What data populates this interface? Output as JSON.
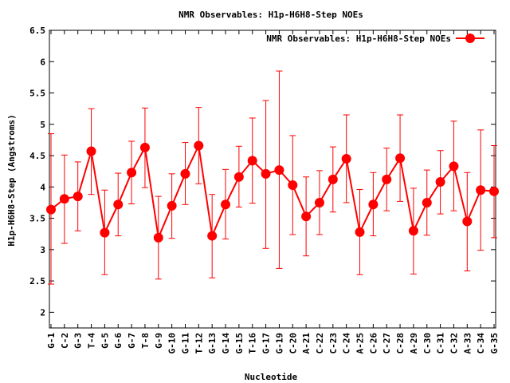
{
  "chart_data": {
    "type": "line",
    "title": "NMR Observables: H1p-H6H8-Step NOEs",
    "xlabel": "Nucleotide",
    "ylabel": "H1p-H6H8-Step (Angstroms)",
    "ylim": [
      1.75,
      6.5
    ],
    "yticks": [
      "2",
      "2.5",
      "3",
      "3.5",
      "4",
      "4.5",
      "5",
      "5.5",
      "6",
      "6.5"
    ],
    "grid": false,
    "legend_position": "top-right",
    "series_color": "#ff0000",
    "series": [
      {
        "name": "NMR Observables: H1p-H6H8-Step NOEs",
        "points": [
          {
            "x": "G-1",
            "y": 3.64,
            "ylow": 2.45,
            "yhigh": 4.85
          },
          {
            "x": "C-2",
            "y": 3.81,
            "ylow": 3.1,
            "yhigh": 4.51
          },
          {
            "x": "G-3",
            "y": 3.85,
            "ylow": 3.3,
            "yhigh": 4.4
          },
          {
            "x": "T-4",
            "y": 4.57,
            "ylow": 3.88,
            "yhigh": 5.25
          },
          {
            "x": "G-5",
            "y": 3.27,
            "ylow": 2.6,
            "yhigh": 3.95
          },
          {
            "x": "G-6",
            "y": 3.72,
            "ylow": 3.22,
            "yhigh": 4.22
          },
          {
            "x": "G-7",
            "y": 4.23,
            "ylow": 3.73,
            "yhigh": 4.73
          },
          {
            "x": "T-8",
            "y": 4.63,
            "ylow": 3.99,
            "yhigh": 5.26
          },
          {
            "x": "G-9",
            "y": 3.19,
            "ylow": 2.53,
            "yhigh": 3.85
          },
          {
            "x": "G-10",
            "y": 3.7,
            "ylow": 3.18,
            "yhigh": 4.21
          },
          {
            "x": "G-11",
            "y": 4.21,
            "ylow": 3.72,
            "yhigh": 4.71
          },
          {
            "x": "T-12",
            "y": 4.66,
            "ylow": 4.05,
            "yhigh": 5.27
          },
          {
            "x": "G-13",
            "y": 3.22,
            "ylow": 2.55,
            "yhigh": 3.88
          },
          {
            "x": "G-14",
            "y": 3.72,
            "ylow": 3.17,
            "yhigh": 4.28
          },
          {
            "x": "G-15",
            "y": 4.16,
            "ylow": 3.68,
            "yhigh": 4.65
          },
          {
            "x": "T-16",
            "y": 4.42,
            "ylow": 3.74,
            "yhigh": 5.1
          },
          {
            "x": "G-17",
            "y": 4.21,
            "ylow": 3.02,
            "yhigh": 5.38
          },
          {
            "x": "G-19",
            "y": 4.27,
            "ylow": 2.7,
            "yhigh": 5.85
          },
          {
            "x": "C-20",
            "y": 4.03,
            "ylow": 3.24,
            "yhigh": 4.82
          },
          {
            "x": "A-21",
            "y": 3.53,
            "ylow": 2.9,
            "yhigh": 4.16
          },
          {
            "x": "C-22",
            "y": 3.75,
            "ylow": 3.24,
            "yhigh": 4.26
          },
          {
            "x": "C-23",
            "y": 4.12,
            "ylow": 3.6,
            "yhigh": 4.64
          },
          {
            "x": "C-24",
            "y": 4.45,
            "ylow": 3.75,
            "yhigh": 5.15
          },
          {
            "x": "A-25",
            "y": 3.28,
            "ylow": 2.6,
            "yhigh": 3.96
          },
          {
            "x": "C-26",
            "y": 3.72,
            "ylow": 3.22,
            "yhigh": 4.23
          },
          {
            "x": "C-27",
            "y": 4.12,
            "ylow": 3.62,
            "yhigh": 4.62
          },
          {
            "x": "C-28",
            "y": 4.46,
            "ylow": 3.77,
            "yhigh": 5.15
          },
          {
            "x": "A-29",
            "y": 3.3,
            "ylow": 2.61,
            "yhigh": 3.98
          },
          {
            "x": "C-30",
            "y": 3.75,
            "ylow": 3.23,
            "yhigh": 4.27
          },
          {
            "x": "C-31",
            "y": 4.08,
            "ylow": 3.57,
            "yhigh": 4.58
          },
          {
            "x": "C-32",
            "y": 4.33,
            "ylow": 3.62,
            "yhigh": 5.05
          },
          {
            "x": "A-33",
            "y": 3.45,
            "ylow": 2.66,
            "yhigh": 4.23
          },
          {
            "x": "C-34",
            "y": 3.95,
            "ylow": 2.99,
            "yhigh": 4.91
          },
          {
            "x": "G-35",
            "y": 3.93,
            "ylow": 3.19,
            "yhigh": 4.66
          }
        ]
      }
    ]
  }
}
